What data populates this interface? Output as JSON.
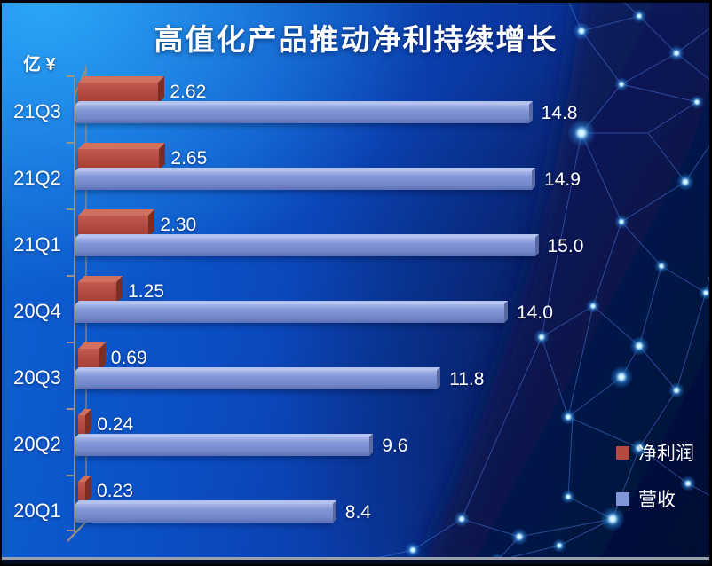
{
  "title": "高值化产品推动净利持续增长",
  "unit_label": "亿 ¥",
  "chart_data": {
    "type": "bar",
    "orientation": "horizontal",
    "title": "高值化产品推动净利持续增长",
    "unit": "亿 ¥",
    "categories": [
      "21Q3",
      "21Q2",
      "21Q1",
      "20Q4",
      "20Q3",
      "20Q2",
      "20Q1"
    ],
    "series": [
      {
        "name": "净利润",
        "color": "#B44A40",
        "values": [
          2.62,
          2.65,
          2.3,
          1.25,
          0.69,
          0.24,
          0.23
        ]
      },
      {
        "name": "营收",
        "color": "#8096D8",
        "values": [
          14.8,
          14.9,
          15.0,
          14.0,
          11.8,
          9.6,
          8.4
        ]
      }
    ],
    "value_labels_shown": true,
    "value_format": {
      "净利润": "0.00",
      "营收": "0.0"
    },
    "xlim": [
      0,
      15.5
    ],
    "grid": false,
    "legend_position": "bottom-right",
    "style_3d": true
  },
  "style": {
    "background_top_left": "#189CEE",
    "background_mid": "#0A49BE",
    "background_deep": "#081B52",
    "mesh_line_color": "#4D7FE8",
    "axis_color": "#9B9383",
    "text_color": "#FFFFFF",
    "bar_red": "#B44A40",
    "bar_blue": "#8096D8"
  }
}
